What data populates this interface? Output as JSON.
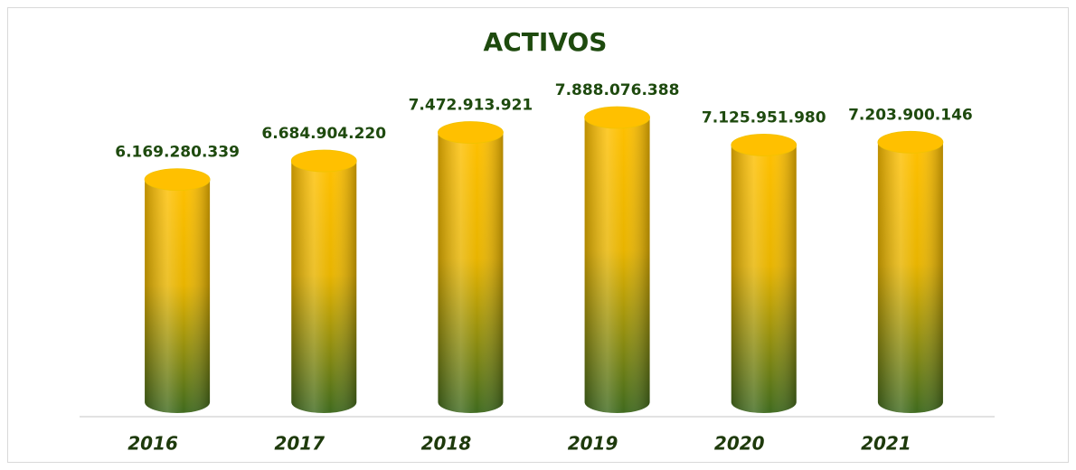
{
  "chart_data": {
    "type": "bar",
    "title": "ACTIVOS",
    "categories": [
      "2016",
      "2017",
      "2018",
      "2019",
      "2020",
      "2021"
    ],
    "values": [
      6169280339,
      6684904220,
      7472913921,
      7888076388,
      7125951980,
      7203900146
    ],
    "value_labels": [
      "6.169.280.339",
      "6.684.904.220",
      "7.472.913.921",
      "7.888.076.388",
      "7.125.951.980",
      "7.203.900.146"
    ],
    "color": "#ffc000"
  }
}
